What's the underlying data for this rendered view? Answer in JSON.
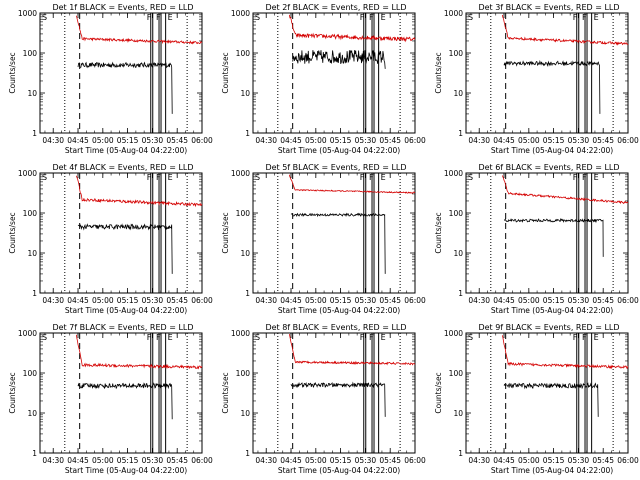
{
  "chart_data": [
    {
      "type": "line",
      "title": "Det 1f BLACK = Events, RED = LLD",
      "xlabel": "Start Time (05-Aug-04 04:22:00)",
      "ylabel": "Counts/sec",
      "yscale": "log",
      "ylim": [
        1,
        1000
      ],
      "xticklabels": [
        "04:30",
        "04:45",
        "05:00",
        "05:15",
        "05:30",
        "05:45",
        "06:00"
      ],
      "yticklabels": [
        "1",
        "10",
        "100",
        "1000"
      ],
      "corner_labels": [
        "S",
        "F",
        "F",
        "E"
      ],
      "series": [
        {
          "name": "Events",
          "color": "#000000",
          "start": "04:45",
          "end": "05:42",
          "level": 50,
          "noise": 0.12,
          "drop_to": 3
        },
        {
          "name": "LLD",
          "color": "#d40000",
          "start": "04:44",
          "end": "06:00",
          "level": 230,
          "end_level": 180,
          "peak": 900,
          "noise": 0.06
        }
      ]
    },
    {
      "type": "line",
      "title": "Det 2f BLACK = Events, RED = LLD",
      "xlabel": "Start Time (05-Aug-04 04:22:00)",
      "ylabel": "Counts/sec",
      "yscale": "log",
      "ylim": [
        1,
        1000
      ],
      "xticklabels": [
        "04:30",
        "04:45",
        "05:00",
        "05:15",
        "05:30",
        "05:45",
        "06:00"
      ],
      "yticklabels": [
        "1",
        "10",
        "100",
        "1000"
      ],
      "corner_labels": [
        "S",
        "F",
        "F",
        "E"
      ],
      "series": [
        {
          "name": "Events",
          "color": "#000000",
          "start": "04:46",
          "end": "05:42",
          "level": 80,
          "noise": 0.35,
          "drop_to": 40
        },
        {
          "name": "LLD",
          "color": "#d40000",
          "start": "04:44",
          "end": "06:00",
          "level": 280,
          "end_level": 220,
          "peak": 900,
          "noise": 0.1
        }
      ]
    },
    {
      "type": "line",
      "title": "Det 3f BLACK = Events, RED = LLD",
      "xlabel": "Start Time (05-Aug-04 04:22:00)",
      "ylabel": "Counts/sec",
      "yscale": "log",
      "ylim": [
        1,
        1000
      ],
      "xticklabels": [
        "04:30",
        "04:45",
        "05:00",
        "05:15",
        "05:30",
        "05:45",
        "06:00"
      ],
      "yticklabels": [
        "1",
        "10",
        "100",
        "1000"
      ],
      "corner_labels": [
        "S",
        "F",
        "F",
        "E"
      ],
      "series": [
        {
          "name": "Events",
          "color": "#000000",
          "start": "04:45",
          "end": "05:43",
          "level": 55,
          "noise": 0.1,
          "drop_to": 3
        },
        {
          "name": "LLD",
          "color": "#d40000",
          "start": "04:44",
          "end": "06:00",
          "level": 240,
          "end_level": 170,
          "peak": 900,
          "noise": 0.06
        }
      ]
    },
    {
      "type": "line",
      "title": "Det 4f BLACK = Events, RED = LLD",
      "xlabel": "Start Time (05-Aug-04 04:22:00)",
      "ylabel": "Counts/sec",
      "yscale": "log",
      "ylim": [
        1,
        1000
      ],
      "xticklabels": [
        "04:30",
        "04:45",
        "05:00",
        "05:15",
        "05:30",
        "05:45",
        "06:00"
      ],
      "yticklabels": [
        "1",
        "10",
        "100",
        "1000"
      ],
      "corner_labels": [
        "S",
        "F",
        "F",
        "E"
      ],
      "series": [
        {
          "name": "Events",
          "color": "#000000",
          "start": "04:45",
          "end": "05:42",
          "level": 45,
          "noise": 0.12,
          "drop_to": 3
        },
        {
          "name": "LLD",
          "color": "#d40000",
          "start": "04:44",
          "end": "06:00",
          "level": 220,
          "end_level": 160,
          "peak": 900,
          "noise": 0.07
        }
      ]
    },
    {
      "type": "line",
      "title": "Det 5f BLACK = Events, RED = LLD",
      "xlabel": "Start Time (05-Aug-04 04:22:00)",
      "ylabel": "Counts/sec",
      "yscale": "log",
      "ylim": [
        1,
        1000
      ],
      "xticklabels": [
        "04:30",
        "04:45",
        "05:00",
        "05:15",
        "05:30",
        "05:45",
        "06:00"
      ],
      "yticklabels": [
        "1",
        "10",
        "100",
        "1000"
      ],
      "corner_labels": [
        "S",
        "F",
        "F",
        "E"
      ],
      "series": [
        {
          "name": "Events",
          "color": "#000000",
          "start": "04:45",
          "end": "05:42",
          "level": 90,
          "noise": 0.06,
          "drop_to": 3
        },
        {
          "name": "LLD",
          "color": "#d40000",
          "start": "04:44",
          "end": "06:00",
          "level": 380,
          "end_level": 320,
          "peak": 900,
          "noise": 0.03
        }
      ]
    },
    {
      "type": "line",
      "title": "Det 6f BLACK = Events, RED = LLD",
      "xlabel": "Start Time (05-Aug-04 04:22:00)",
      "ylabel": "Counts/sec",
      "yscale": "log",
      "ylim": [
        1,
        1000
      ],
      "xticklabels": [
        "04:30",
        "04:45",
        "05:00",
        "05:15",
        "05:30",
        "05:45",
        "06:00"
      ],
      "yticklabels": [
        "1",
        "10",
        "100",
        "1000"
      ],
      "corner_labels": [
        "S",
        "F",
        "F",
        "E"
      ],
      "series": [
        {
          "name": "Events",
          "color": "#000000",
          "start": "04:45",
          "end": "05:45",
          "level": 65,
          "noise": 0.07,
          "drop_to": 8
        },
        {
          "name": "LLD",
          "color": "#d40000",
          "start": "04:44",
          "end": "06:00",
          "level": 320,
          "end_level": 180,
          "peak": 900,
          "noise": 0.05
        }
      ]
    },
    {
      "type": "line",
      "title": "Det 7f BLACK = Events, RED = LLD",
      "xlabel": "Start Time (05-Aug-04 04:22:00)",
      "ylabel": "Counts/sec",
      "yscale": "log",
      "ylim": [
        1,
        1000
      ],
      "xticklabels": [
        "04:30",
        "04:45",
        "05:00",
        "05:15",
        "05:30",
        "05:45",
        "06:00"
      ],
      "yticklabels": [
        "1",
        "10",
        "100",
        "1000"
      ],
      "corner_labels": [
        "S",
        "F",
        "F",
        "E"
      ],
      "series": [
        {
          "name": "Events",
          "color": "#000000",
          "start": "04:45",
          "end": "05:42",
          "level": 48,
          "noise": 0.12,
          "drop_to": 7
        },
        {
          "name": "LLD",
          "color": "#d40000",
          "start": "04:44",
          "end": "06:00",
          "level": 160,
          "end_level": 140,
          "peak": 900,
          "noise": 0.07
        }
      ]
    },
    {
      "type": "line",
      "title": "Det 8f BLACK = Events, RED = LLD",
      "xlabel": "Start Time (05-Aug-04 04:22:00)",
      "ylabel": "Counts/sec",
      "yscale": "log",
      "ylim": [
        1,
        1000
      ],
      "xticklabels": [
        "04:30",
        "04:45",
        "05:00",
        "05:15",
        "05:30",
        "05:45",
        "06:00"
      ],
      "yticklabels": [
        "1",
        "10",
        "100",
        "1000"
      ],
      "corner_labels": [
        "S",
        "F",
        "F",
        "E"
      ],
      "series": [
        {
          "name": "Events",
          "color": "#000000",
          "start": "04:45",
          "end": "05:42",
          "level": 50,
          "noise": 0.1,
          "drop_to": 8
        },
        {
          "name": "LLD",
          "color": "#d40000",
          "start": "04:44",
          "end": "06:00",
          "level": 190,
          "end_level": 170,
          "peak": 900,
          "noise": 0.05
        }
      ]
    },
    {
      "type": "line",
      "title": "Det 9f BLACK = Events, RED = LLD",
      "xlabel": "Start Time (05-Aug-04 04:22:00)",
      "ylabel": "Counts/sec",
      "yscale": "log",
      "ylim": [
        1,
        1000
      ],
      "xticklabels": [
        "04:30",
        "04:45",
        "05:00",
        "05:15",
        "05:30",
        "05:45",
        "06:00"
      ],
      "yticklabels": [
        "1",
        "10",
        "100",
        "1000"
      ],
      "corner_labels": [
        "S",
        "F",
        "F",
        "E"
      ],
      "series": [
        {
          "name": "Events",
          "color": "#000000",
          "start": "04:45",
          "end": "05:42",
          "level": 48,
          "noise": 0.12,
          "drop_to": 8
        },
        {
          "name": "LLD",
          "color": "#d40000",
          "start": "04:44",
          "end": "06:00",
          "level": 170,
          "end_level": 140,
          "peak": 900,
          "noise": 0.06
        }
      ]
    }
  ],
  "markers": {
    "dotted_left": "04:37",
    "dashed": "04:46",
    "double_solid_1": "05:29",
    "double_solid_2": "05:34",
    "solid_3": "05:38",
    "dotted_right": "05:51"
  }
}
